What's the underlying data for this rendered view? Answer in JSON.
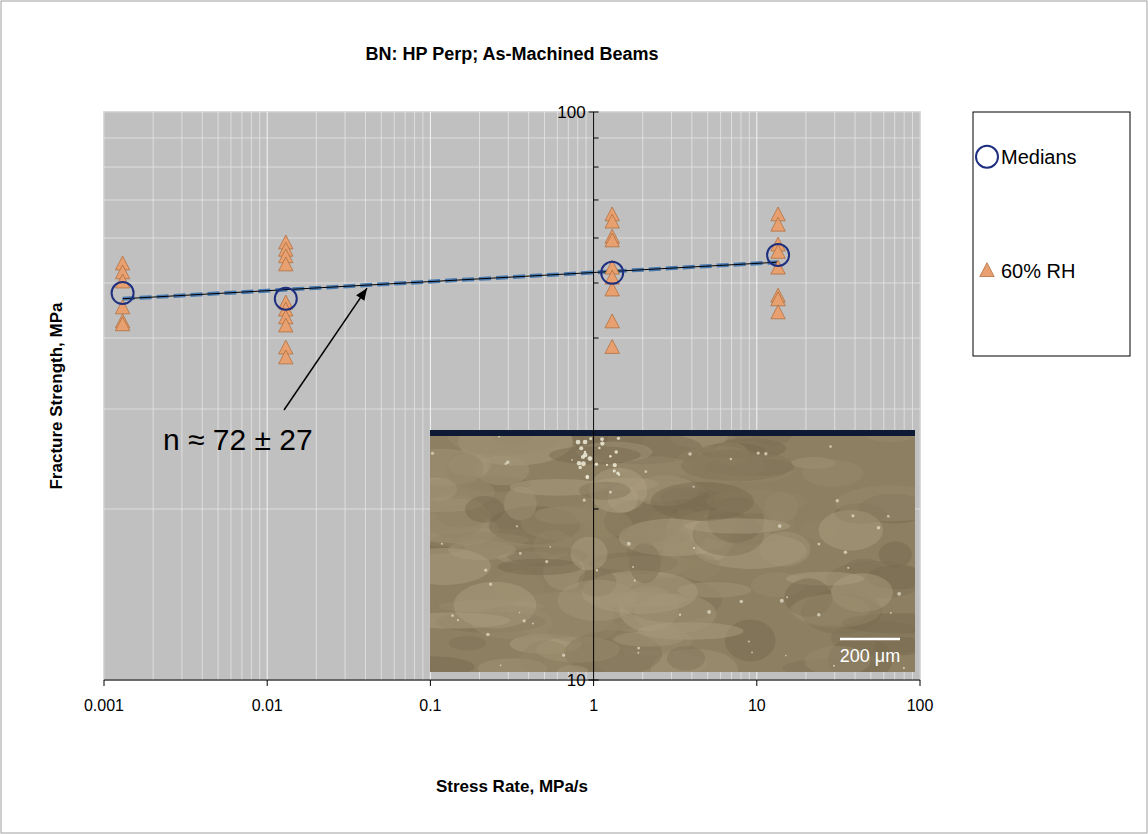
{
  "chart_data": {
    "type": "scatter",
    "title": "BN: HP Perp; As-Machined Beams",
    "x_label": "Stress Rate, MPa/s",
    "y_label": "Fracture Strength, MPa",
    "log": true,
    "grid": true,
    "legend": "right",
    "xlim": [
      0.001,
      100
    ],
    "ylim": [
      10,
      100
    ],
    "xticks": [
      0.001,
      0.01,
      0.1,
      1,
      10,
      100
    ],
    "yticks": [
      10,
      100
    ],
    "y_axis_at_x": 1,
    "series": [
      {
        "name": "Medians",
        "type": "scatter",
        "marker": "circle",
        "color": "#1f2f80",
        "x": [
          0.0013,
          0.013,
          1.3,
          13.5
        ],
        "values": [
          48.0,
          46.9,
          52.1,
          56.0
        ]
      },
      {
        "name": "60% RH",
        "type": "scatter",
        "marker": "triangle",
        "color": "#e8a070",
        "x": [
          0.0013,
          0.0013,
          0.0013,
          0.0013,
          0.0013,
          0.0013,
          0.013,
          0.013,
          0.013,
          0.013,
          0.013,
          0.013,
          0.013,
          0.013,
          0.013,
          0.013,
          1.3,
          1.3,
          1.3,
          1.3,
          1.3,
          1.3,
          1.3,
          1.3,
          1.3,
          13.5,
          13.5,
          13.5,
          13.5,
          13.5,
          13.5,
          13.5,
          13.5
        ],
        "values": [
          54.0,
          52.1,
          50.2,
          45.2,
          42.7,
          42.2,
          58.8,
          57.1,
          55.6,
          53.8,
          46.1,
          44.8,
          43.4,
          42.0,
          38.4,
          36.9,
          65.9,
          64.0,
          60.2,
          59.3,
          53.1,
          51.0,
          48.6,
          42.7,
          38.5,
          65.9,
          63.2,
          58.3,
          56.6,
          53.1,
          47.4,
          46.7,
          44.3
        ]
      }
    ],
    "fit_line": {
      "type": "line",
      "line_style": "dashed",
      "color": "#4a7ab0",
      "x": [
        0.0013,
        13.5
      ],
      "values": [
        46.9,
        54.4
      ]
    },
    "annotation": "n ≈ 72 ± 27",
    "inset_scale_label": "200 μm"
  }
}
